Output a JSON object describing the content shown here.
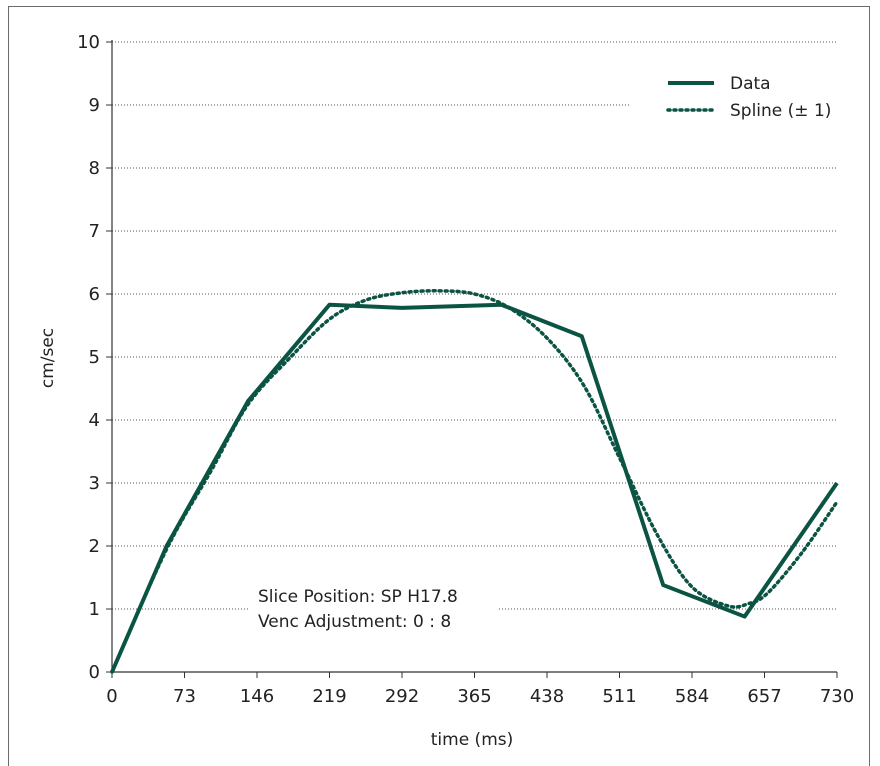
{
  "chart_data": {
    "type": "line",
    "title": "",
    "xlabel": "time (ms)",
    "ylabel": "cm/sec",
    "xlim": [
      0,
      730
    ],
    "ylim": [
      0,
      10
    ],
    "x_ticks": [
      "0",
      "73",
      "146",
      "219",
      "292",
      "365",
      "438",
      "511",
      "584",
      "657",
      "730"
    ],
    "y_ticks": [
      "0",
      "1",
      "2",
      "3",
      "4",
      "5",
      "6",
      "7",
      "8",
      "9",
      "10"
    ],
    "grid": "horizontal dotted",
    "legend_position": "top-right",
    "series": [
      {
        "name": "Data",
        "style": "solid",
        "color": "#0b5443",
        "x": [
          0,
          55,
          137,
          219,
          292,
          392,
          473,
          555,
          637,
          730
        ],
        "y": [
          0,
          2.0,
          4.3,
          5.83,
          5.78,
          5.83,
          5.33,
          1.38,
          0.88,
          3.0
        ]
      },
      {
        "name": "Spline (± 1)",
        "style": "dotted",
        "color": "#0b5443",
        "x": [
          0,
          55,
          100,
          137,
          180,
          219,
          255,
          292,
          330,
          365,
          400,
          438,
          475,
          511,
          550,
          584,
          620,
          640,
          660,
          695,
          730
        ],
        "y": [
          0,
          1.95,
          3.2,
          4.25,
          5.0,
          5.6,
          5.9,
          6.02,
          6.05,
          6.0,
          5.78,
          5.3,
          4.55,
          3.4,
          2.15,
          1.35,
          1.05,
          1.08,
          1.25,
          1.9,
          2.7
        ]
      }
    ],
    "annotations": [
      "Slice Position: SP H17.8",
      "Venc Adjustment: 0 : 8"
    ]
  }
}
